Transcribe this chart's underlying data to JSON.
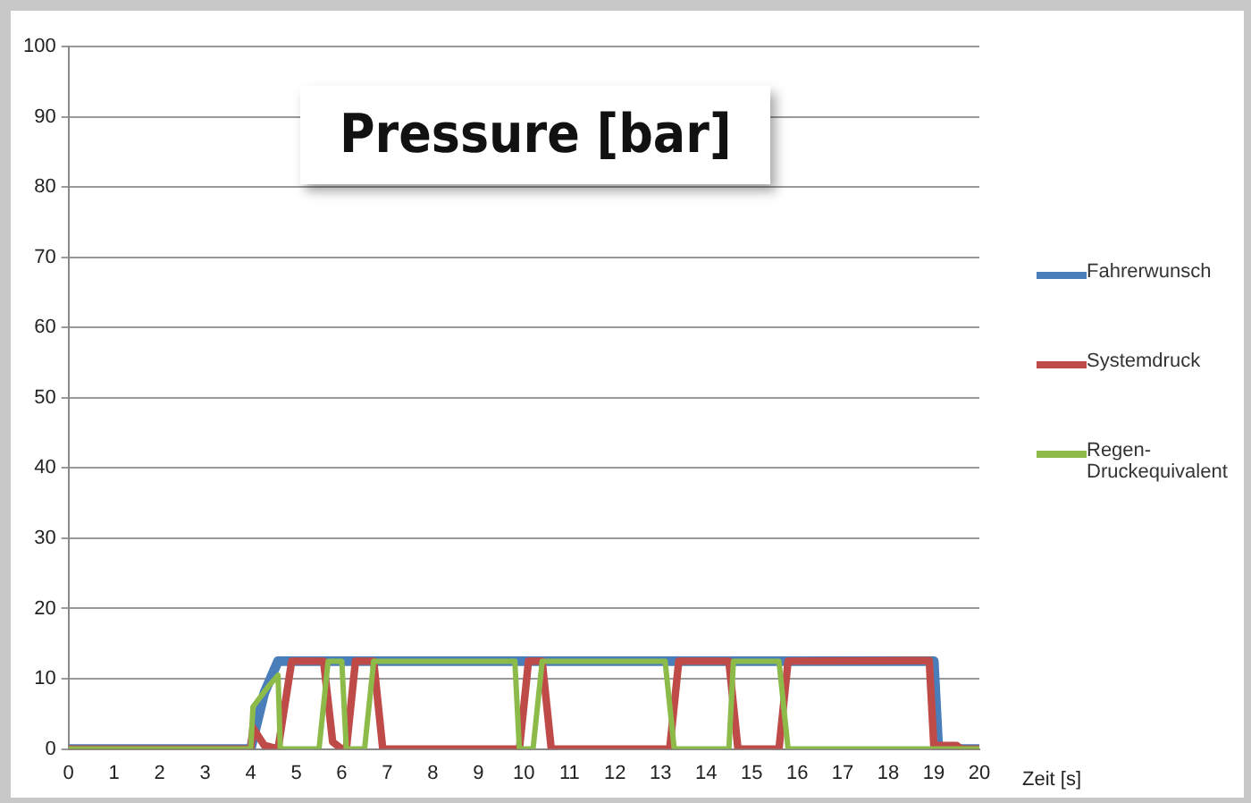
{
  "chart_data": {
    "type": "line",
    "title": "Pressure [bar]",
    "xlabel": "Zeit [s]",
    "xlim": [
      0,
      20
    ],
    "xticks": [
      0,
      1,
      2,
      3,
      4,
      5,
      6,
      7,
      8,
      9,
      10,
      11,
      12,
      13,
      14,
      15,
      16,
      17,
      18,
      19,
      20
    ],
    "ylim": [
      0,
      100
    ],
    "yticks": [
      0,
      10,
      20,
      30,
      40,
      50,
      60,
      70,
      80,
      90,
      100
    ],
    "grid": "y",
    "legend": "right",
    "marker": "none",
    "line_style": "solid",
    "series": [
      {
        "name": "Fahrerwunsch",
        "color": "#4a7ebb",
        "x": [
          0,
          4,
          4.3,
          4.6,
          19,
          19.1,
          20
        ],
        "values": [
          0,
          0,
          8,
          12.5,
          12.5,
          0,
          0
        ]
      },
      {
        "name": "Systemdruck",
        "color": "#be4b48",
        "x": [
          0,
          4,
          4.05,
          4.3,
          4.6,
          4.9,
          5.6,
          5.8,
          6.0,
          6.1,
          6.3,
          6.7,
          6.9,
          9.9,
          10.1,
          10.4,
          10.6,
          13.2,
          13.4,
          14.5,
          14.7,
          15.6,
          15.8,
          18.9,
          19.0,
          19.5,
          19.6,
          20
        ],
        "values": [
          0,
          0,
          3,
          0.5,
          0,
          12.5,
          12.5,
          1,
          0,
          0,
          12.5,
          12.5,
          0,
          0,
          12.5,
          12.5,
          0,
          0,
          12.5,
          12.5,
          0,
          0,
          12.5,
          12.6,
          0.5,
          0.5,
          0,
          0
        ]
      },
      {
        "name": "Regen-Druckequivalent",
        "color": "#8cbb4a",
        "x": [
          0,
          4,
          4.05,
          4.4,
          4.6,
          4.65,
          5.5,
          5.7,
          6.0,
          6.1,
          6.5,
          6.7,
          9.8,
          9.9,
          10.2,
          10.4,
          13.1,
          13.3,
          14.5,
          14.6,
          15.6,
          15.8,
          20
        ],
        "values": [
          0,
          0,
          6,
          9,
          10.5,
          0,
          0,
          12.5,
          12.5,
          0,
          0,
          12.5,
          12.5,
          0,
          0,
          12.5,
          12.5,
          0,
          0,
          12.5,
          12.5,
          0,
          0
        ]
      }
    ]
  }
}
